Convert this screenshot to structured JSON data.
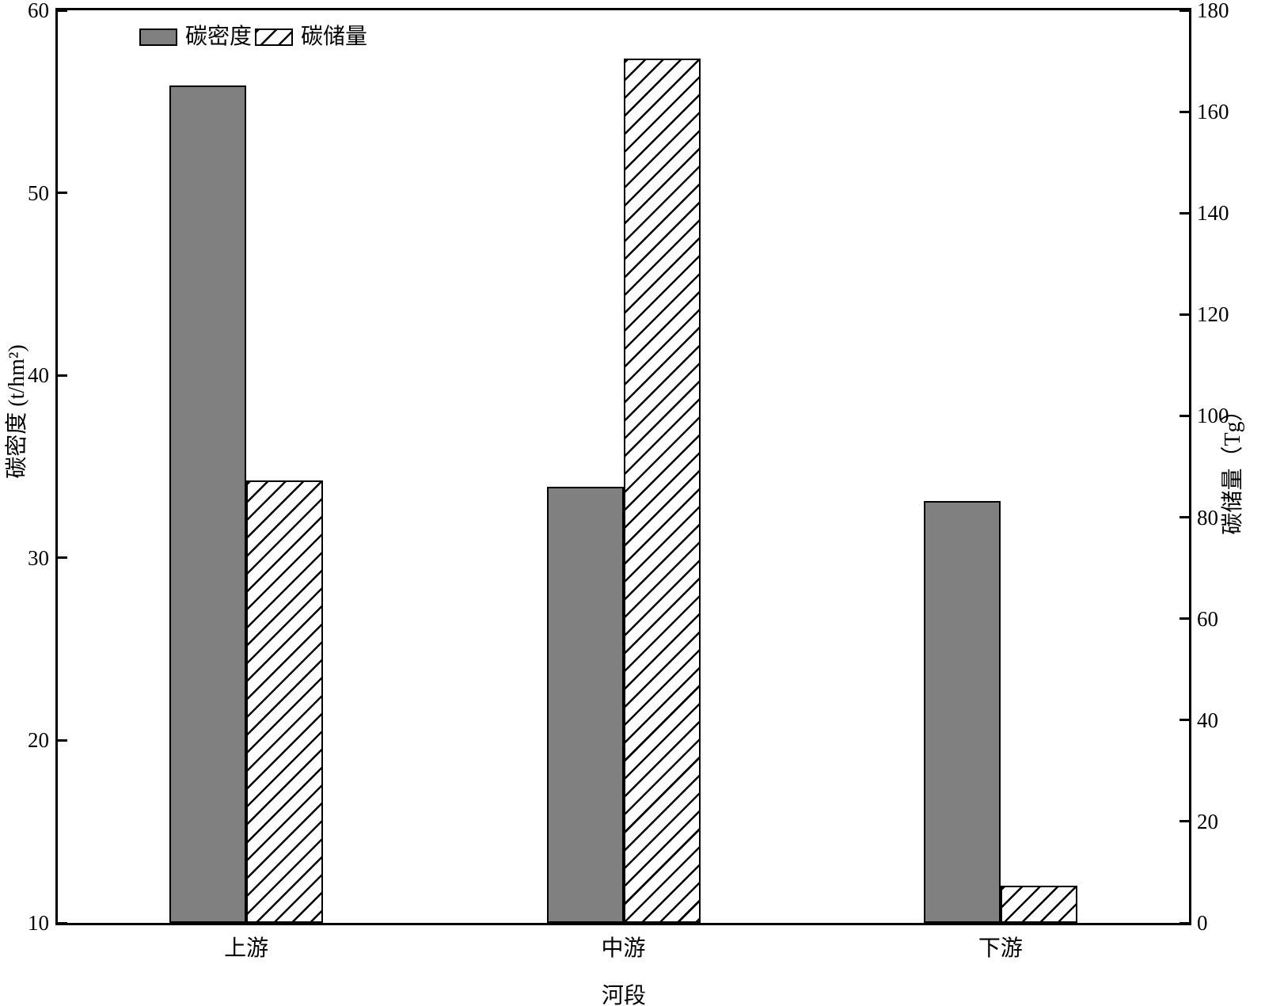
{
  "chart_data": {
    "type": "bar",
    "title": "",
    "categories": [
      "上游",
      "中游",
      "下游"
    ],
    "series": [
      {
        "key": "density",
        "name": "碳密度",
        "axis": "left",
        "style": "solid",
        "values": [
          55.9,
          33.9,
          33.1
        ]
      },
      {
        "key": "storage",
        "name": "碳储量",
        "axis": "right",
        "style": "hatch",
        "values": [
          87.3,
          170.5,
          7.3
        ]
      }
    ],
    "xlabel": "河段",
    "ylabel_left": "碳密度 (t/hm²)",
    "ylabel_right": "碳储量（Tg）",
    "ylim_left": [
      10,
      60
    ],
    "yticks_left": [
      10,
      20,
      30,
      40,
      50,
      60
    ],
    "ylim_right": [
      0,
      180
    ],
    "yticks_right": [
      0,
      20,
      40,
      60,
      80,
      100,
      120,
      140,
      160,
      180
    ],
    "legend": {
      "items": [
        "碳密度",
        "碳储量"
      ],
      "position": "top-left-inside"
    },
    "grid": false,
    "hatch_pattern": "/",
    "colors": {
      "bar_fill": "#808080",
      "bar_edge": "#000000",
      "hatch_line": "#000000",
      "hatch_bg": "#ffffff",
      "axis": "#000000",
      "text": "#000000",
      "background": "#ffffff"
    }
  }
}
